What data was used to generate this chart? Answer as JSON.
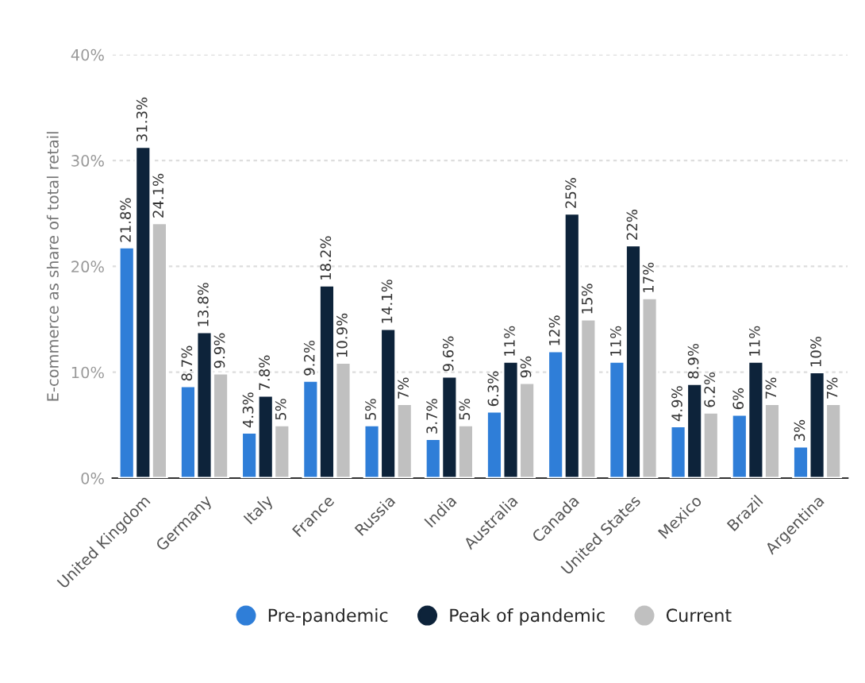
{
  "chart_data": {
    "type": "bar",
    "ylabel": "E-commerce as share of total retail",
    "categories": [
      "United Kingdom",
      "Germany",
      "Italy",
      "France",
      "Russia",
      "India",
      "Australia",
      "Canada",
      "United States",
      "Mexico",
      "Brazil",
      "Argentina"
    ],
    "series": [
      {
        "name": "Pre-pandemic",
        "color": "#2f7ed8",
        "values": [
          21.8,
          8.7,
          4.3,
          9.2,
          5,
          3.7,
          6.3,
          12,
          11,
          4.9,
          6,
          3
        ],
        "value_labels": [
          "21.8%",
          "8.7%",
          "4.3%",
          "9.2%",
          "5%",
          "3.7%",
          "6.3%",
          "12%",
          "11%",
          "4.9%",
          "6%",
          "3%"
        ]
      },
      {
        "name": "Peak of pandemic",
        "color": "#0d233a",
        "values": [
          31.3,
          13.8,
          7.8,
          18.2,
          14.1,
          9.6,
          11,
          25,
          22,
          8.9,
          11,
          10
        ],
        "value_labels": [
          "31.3%",
          "13.8%",
          "7.8%",
          "18.2%",
          "14.1%",
          "9.6%",
          "11%",
          "25%",
          "22%",
          "8.9%",
          "11%",
          "10%"
        ]
      },
      {
        "name": "Current",
        "color": "#c0c0c0",
        "values": [
          24.1,
          9.9,
          5,
          10.9,
          7,
          5,
          9,
          15,
          17,
          6.2,
          7,
          7
        ],
        "value_labels": [
          "24.1%",
          "9.9%",
          "5%",
          "10.9%",
          "7%",
          "5%",
          "9%",
          "15%",
          "17%",
          "6.2%",
          "7%",
          "7%"
        ]
      }
    ],
    "ylim": [
      0,
      40
    ],
    "yticks": [
      {
        "value": 0,
        "label": "0%"
      },
      {
        "value": 10,
        "label": "10%"
      },
      {
        "value": 20,
        "label": "20%"
      },
      {
        "value": 30,
        "label": "30%"
      },
      {
        "value": 40,
        "label": "40%"
      }
    ],
    "grid": "y",
    "legend": "bottom"
  }
}
